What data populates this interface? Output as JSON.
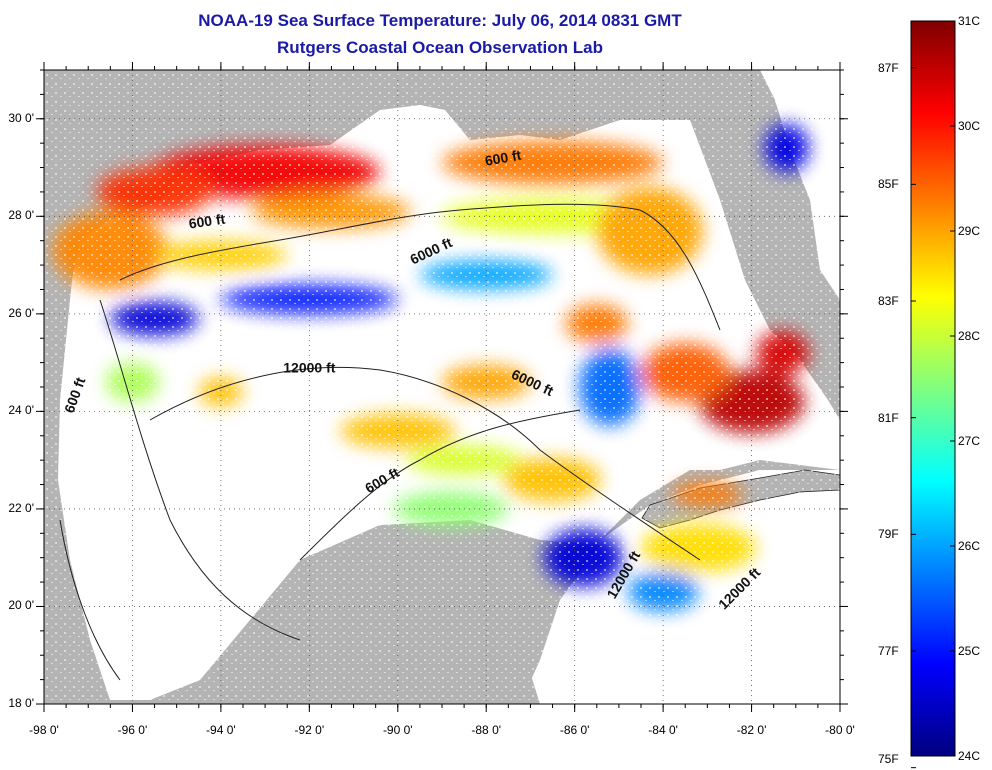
{
  "title": "NOAA-19 Sea Surface Temperature:  July 06, 2014 0831 GMT",
  "subtitle": "Rutgers Coastal Ocean Observation Lab",
  "map": {
    "lon_range": [
      -98,
      -80
    ],
    "lat_range": [
      18,
      31
    ],
    "x_ticks": [
      "-98 0'",
      "-96 0'",
      "-94 0'",
      "-92 0'",
      "-90 0'",
      "-88 0'",
      "-86 0'",
      "-84 0'",
      "-82 0'",
      "-80 0'"
    ],
    "y_ticks": [
      "18 0'",
      "20 0'",
      "22 0'",
      "24 0'",
      "26 0'",
      "28 0'",
      "30 0'"
    ],
    "grid": "dotted",
    "colors": {
      "land": "#b4b4b4",
      "cloud_mask": "#ffffff",
      "contour": "#222222"
    },
    "contour_labels": [
      {
        "text": "600 ft",
        "lon": -94.3,
        "lat": 27.8,
        "angle": -8
      },
      {
        "text": "600 ft",
        "lon": -87.6,
        "lat": 29.1,
        "angle": -10
      },
      {
        "text": "600 ft",
        "lon": -90.3,
        "lat": 22.5,
        "angle": -30
      },
      {
        "text": "600 ft",
        "lon": -97.2,
        "lat": 24.3,
        "angle": -70
      },
      {
        "text": "6000 ft",
        "lon": -89.2,
        "lat": 27.2,
        "angle": -25
      },
      {
        "text": "6000 ft",
        "lon": -87.0,
        "lat": 24.5,
        "angle": 25
      },
      {
        "text": "12000 ft",
        "lon": -92.0,
        "lat": 24.8,
        "angle": 0
      },
      {
        "text": "12000 ft",
        "lon": -82.2,
        "lat": 20.3,
        "angle": -45
      },
      {
        "text": "12000 ft",
        "lon": -84.8,
        "lat": 20.6,
        "angle": -60
      }
    ]
  },
  "colorbar": {
    "colors": [
      "#00007f",
      "#0000ff",
      "#007fff",
      "#00ffff",
      "#7fff7f",
      "#ffff00",
      "#ff7f00",
      "#ff0000",
      "#7f0000"
    ],
    "celsius": {
      "min": 24,
      "max": 31,
      "labels": [
        "31C",
        "30C",
        "29C",
        "28C",
        "27C",
        "26C",
        "25C",
        "24C"
      ]
    },
    "fahrenheit": [
      {
        "label": "87F",
        "value": 87
      },
      {
        "label": "85F",
        "value": 85
      },
      {
        "label": "83F",
        "value": 83
      },
      {
        "label": "81F",
        "value": 81
      },
      {
        "label": "79F",
        "value": 79
      },
      {
        "label": "77F",
        "value": 77
      },
      {
        "label": "75F",
        "value": 75
      }
    ]
  },
  "sst_patches": [
    {
      "lon": -93.0,
      "lat": 28.9,
      "rx": 2.6,
      "ry": 0.55,
      "t": 30.2
    },
    {
      "lon": -95.5,
      "lat": 28.5,
      "rx": 1.3,
      "ry": 0.5,
      "t": 29.8
    },
    {
      "lon": -96.5,
      "lat": 27.3,
      "rx": 1.3,
      "ry": 0.8,
      "t": 29.2
    },
    {
      "lon": -94.0,
      "lat": 27.2,
      "rx": 1.5,
      "ry": 0.3,
      "t": 28.7
    },
    {
      "lon": -91.5,
      "lat": 28.1,
      "rx": 1.8,
      "ry": 0.35,
      "t": 29.1
    },
    {
      "lon": -86.5,
      "lat": 29.1,
      "rx": 2.5,
      "ry": 0.45,
      "t": 29.3
    },
    {
      "lon": -86.5,
      "lat": 28.0,
      "rx": 2.5,
      "ry": 0.35,
      "t": 28.2
    },
    {
      "lon": -84.3,
      "lat": 27.7,
      "rx": 1.2,
      "ry": 0.9,
      "t": 29.0
    },
    {
      "lon": -88.0,
      "lat": 26.8,
      "rx": 1.5,
      "ry": 0.3,
      "t": 26.0
    },
    {
      "lon": -92.0,
      "lat": 26.3,
      "rx": 2.0,
      "ry": 0.3,
      "t": 25.0
    },
    {
      "lon": -95.5,
      "lat": 25.9,
      "rx": 1.0,
      "ry": 0.35,
      "t": 24.6
    },
    {
      "lon": -85.5,
      "lat": 25.8,
      "rx": 0.7,
      "ry": 0.4,
      "t": 29.3
    },
    {
      "lon": -82.0,
      "lat": 24.2,
      "rx": 1.2,
      "ry": 0.65,
      "t": 30.6
    },
    {
      "lon": -81.3,
      "lat": 25.2,
      "rx": 0.6,
      "ry": 0.45,
      "t": 30.4
    },
    {
      "lon": -83.5,
      "lat": 24.8,
      "rx": 1.0,
      "ry": 0.6,
      "t": 29.5
    },
    {
      "lon": -85.2,
      "lat": 24.5,
      "rx": 0.7,
      "ry": 0.8,
      "t": 25.6
    },
    {
      "lon": -88.0,
      "lat": 24.6,
      "rx": 1.0,
      "ry": 0.35,
      "t": 29.0
    },
    {
      "lon": -90.0,
      "lat": 23.6,
      "rx": 1.3,
      "ry": 0.35,
      "t": 28.8
    },
    {
      "lon": -88.5,
      "lat": 23.0,
      "rx": 1.3,
      "ry": 0.3,
      "t": 28.1
    },
    {
      "lon": -88.8,
      "lat": 22.0,
      "rx": 1.3,
      "ry": 0.35,
      "t": 27.6
    },
    {
      "lon": -86.5,
      "lat": 22.6,
      "rx": 1.1,
      "ry": 0.45,
      "t": 28.8
    },
    {
      "lon": -85.8,
      "lat": 21.0,
      "rx": 0.9,
      "ry": 0.6,
      "t": 24.6
    },
    {
      "lon": -83.2,
      "lat": 21.2,
      "rx": 1.3,
      "ry": 0.5,
      "t": 28.6
    },
    {
      "lon": -83.0,
      "lat": 22.3,
      "rx": 0.8,
      "ry": 0.25,
      "t": 29.3
    },
    {
      "lon": -84.0,
      "lat": 20.3,
      "rx": 0.8,
      "ry": 0.4,
      "t": 25.8
    },
    {
      "lon": -81.2,
      "lat": 29.4,
      "rx": 0.5,
      "ry": 0.5,
      "t": 24.7
    },
    {
      "lon": -96.0,
      "lat": 24.6,
      "rx": 0.6,
      "ry": 0.4,
      "t": 27.8
    },
    {
      "lon": -94.0,
      "lat": 24.4,
      "rx": 0.5,
      "ry": 0.3,
      "t": 28.8
    }
  ]
}
